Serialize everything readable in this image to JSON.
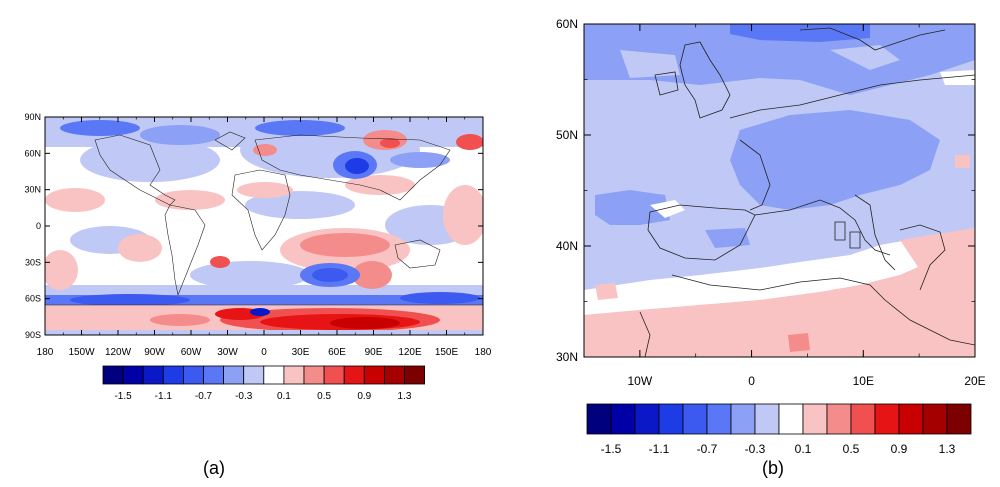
{
  "panel_a": {
    "caption": "(a)",
    "lat_labels": [
      "90N",
      "60N",
      "30N",
      "0",
      "30S",
      "60S",
      "90S"
    ],
    "lon_labels": [
      "180",
      "150W",
      "120W",
      "90W",
      "60W",
      "30W",
      "0",
      "30E",
      "60E",
      "90E",
      "120E",
      "150E",
      "180"
    ]
  },
  "panel_b": {
    "caption": "(b)",
    "lat_labels": [
      "60N",
      "50N",
      "40N",
      "30N"
    ],
    "lon_labels": [
      "10W",
      "0",
      "10E",
      "20E"
    ]
  },
  "colorbar": {
    "colors": [
      "#00007f",
      "#0000a6",
      "#0a18c8",
      "#1e3ce6",
      "#3c5af0",
      "#5a78f5",
      "#8ca0f5",
      "#c0c8f5",
      "#ffffff",
      "#fac3c3",
      "#f58c8c",
      "#f05050",
      "#e61414",
      "#c80000",
      "#a50000",
      "#7d0000"
    ],
    "tick_labels": [
      "-1.5",
      "-1.1",
      "-0.7",
      "-0.3",
      "0.1",
      "0.5",
      "0.9",
      "1.3"
    ]
  }
}
